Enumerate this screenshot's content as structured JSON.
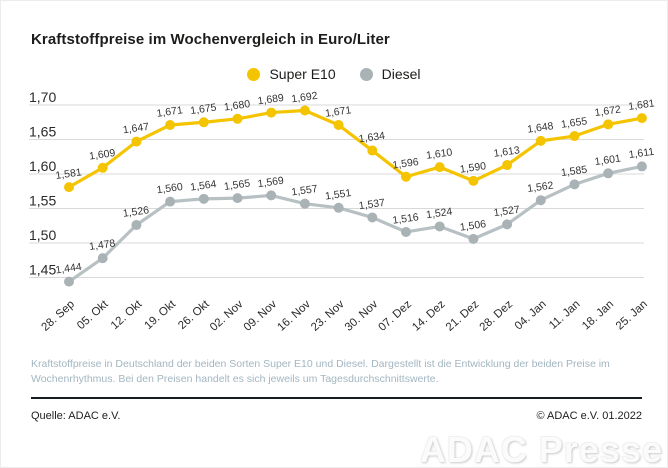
{
  "title": "Kraftstoffpreise im Wochenvergleich in Euro/Liter",
  "legend": [
    {
      "label": "Super E10",
      "color": "#F5C400"
    },
    {
      "label": "Diesel",
      "color": "#A9B3B6"
    }
  ],
  "chart_data": {
    "type": "line",
    "title": "Kraftstoffpreise im Wochenvergleich in Euro/Liter",
    "xlabel": "",
    "ylabel": "Euro/Liter",
    "categories": [
      "28. Sep",
      "05. Okt",
      "12. Okt",
      "19. Okt",
      "26. Okt",
      "02. Nov",
      "09. Nov",
      "16. Nov",
      "23. Nov",
      "30. Nov",
      "07. Dez",
      "14. Dez",
      "21. Dez",
      "28. Dez",
      "04. Jan",
      "11. Jan",
      "18. Jan",
      "25. Jan"
    ],
    "series": [
      {
        "name": "Super E10",
        "color": "#F5C400",
        "marker_color": "#F5C400",
        "values": [
          1.581,
          1.609,
          1.647,
          1.671,
          1.675,
          1.68,
          1.689,
          1.692,
          1.671,
          1.634,
          1.596,
          1.61,
          1.59,
          1.613,
          1.648,
          1.655,
          1.672,
          1.681
        ]
      },
      {
        "name": "Diesel",
        "color": "#B7C0C3",
        "marker_color": "#A9B3B6",
        "values": [
          1.444,
          1.478,
          1.526,
          1.56,
          1.564,
          1.565,
          1.569,
          1.557,
          1.551,
          1.537,
          1.516,
          1.524,
          1.506,
          1.527,
          1.562,
          1.585,
          1.601,
          1.611
        ]
      }
    ],
    "yticks": [
      1.7,
      1.65,
      1.6,
      1.55,
      1.5,
      1.45
    ],
    "ylim": [
      1.42,
      1.72
    ],
    "grid": true,
    "gridline_color": "#d9d9d9",
    "legend_position": "top-center",
    "value_labels": true,
    "decimal_separator": ","
  },
  "footnote": {
    "line1": "Kraftstoffpreise in Deutschland der beiden Sorten Super E10 und Diesel. Dargestellt ist die Entwicklung der beiden Preise im",
    "line2": "Wochenrhythmus. Bei den Preisen handelt es sich jeweils um Tagesdurchschnittswerte."
  },
  "source": {
    "left": "Quelle: ADAC e.V.",
    "right": "© ADAC e.V. 01.2022"
  },
  "watermark": "ADAC Presse"
}
